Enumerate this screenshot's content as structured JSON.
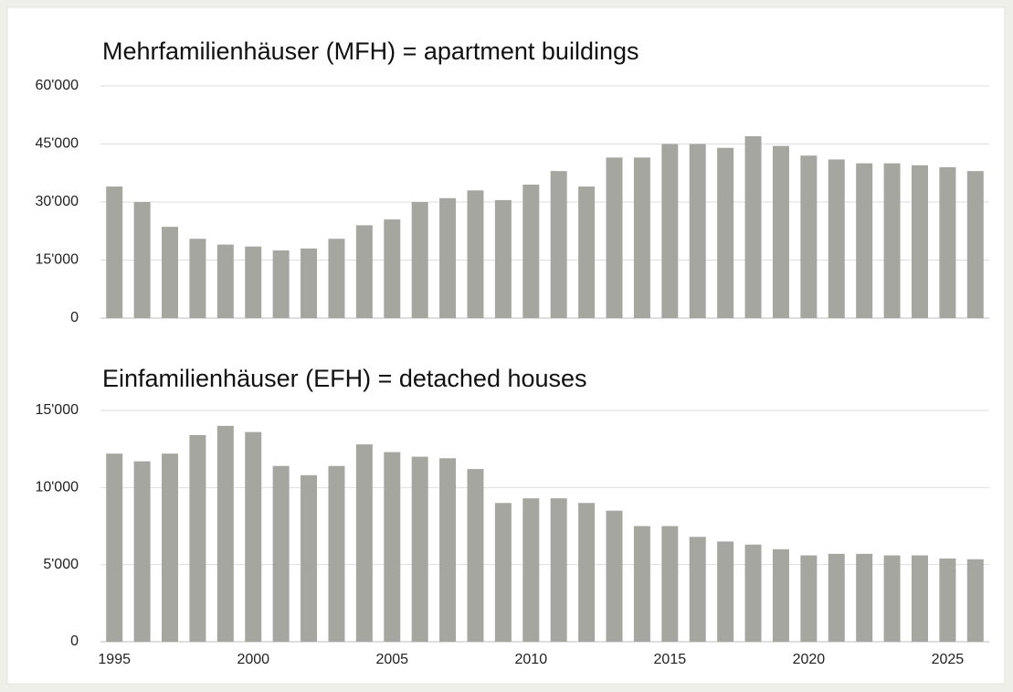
{
  "chart_data": [
    {
      "type": "bar",
      "title": "Mehrfamilienhäuser (MFH) = apartment buildings",
      "color": "#a6a6a1",
      "values": [
        34000,
        30000,
        23600,
        20500,
        19000,
        18500,
        17500,
        18000,
        20500,
        24000,
        25500,
        30000,
        31000,
        33000,
        30500,
        34500,
        38000,
        34000,
        41500,
        41500,
        45000,
        45000,
        44000,
        47000,
        44500,
        42000,
        41000,
        40000,
        40000,
        39500,
        39000,
        38000
      ],
      "ylim": [
        0,
        60000
      ],
      "yticks": [
        0,
        {
          "value": 15000,
          "label": "15'000"
        },
        {
          "value": 30000,
          "label": "30'000"
        },
        {
          "value": 45000,
          "label": "45'000"
        },
        {
          "value": 60000,
          "label": "60'000"
        }
      ],
      "grid": true
    },
    {
      "type": "bar",
      "title": "Einfamilienhäuser (EFH) = detached houses",
      "color": "#a6a6a1",
      "categories": [
        1995,
        null,
        null,
        null,
        null,
        2000,
        null,
        null,
        null,
        null,
        2005,
        null,
        null,
        null,
        null,
        2010,
        null,
        null,
        null,
        null,
        2015,
        null,
        null,
        null,
        null,
        2020,
        null,
        null,
        null,
        null,
        2025,
        null
      ],
      "values": [
        12200,
        11700,
        12200,
        13400,
        14000,
        13600,
        11400,
        10800,
        11400,
        12800,
        12300,
        12000,
        11900,
        11200,
        9000,
        9300,
        9300,
        9000,
        8500,
        7500,
        7500,
        6800,
        6500,
        6300,
        6000,
        5600,
        5700,
        5700,
        5600,
        5600,
        5400,
        5350
      ],
      "ylim": [
        0,
        15000
      ],
      "yticks": [
        0,
        {
          "value": 5000,
          "label": "5'000"
        },
        {
          "value": 10000,
          "label": "10'000"
        },
        {
          "value": 15000,
          "label": "15'000"
        }
      ],
      "grid": true
    }
  ]
}
